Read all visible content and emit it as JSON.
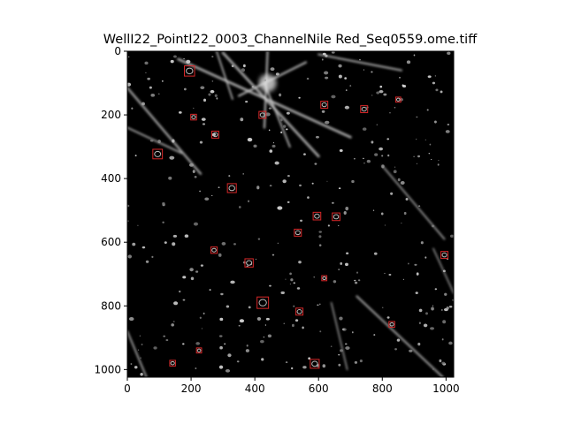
{
  "chart_data": {
    "type": "image-with-detections",
    "title": "WellI22_PointI22_0003_ChannelNile Red_Seq0559.ome.tiff",
    "xlabel": "",
    "ylabel": "",
    "xlim": [
      0,
      1024
    ],
    "ylim": [
      1024,
      0
    ],
    "x_ticks": [
      0,
      200,
      400,
      600,
      800,
      1000
    ],
    "y_ticks": [
      0,
      200,
      400,
      600,
      800,
      1000
    ],
    "grid": false,
    "legend": "none",
    "colors": {
      "image_background": "#000000",
      "box": "#d62728",
      "spot": "#bdbdbd"
    },
    "detections": [
      {
        "x": 195,
        "y": 62,
        "size": 32
      },
      {
        "x": 850,
        "y": 152,
        "size": 16
      },
      {
        "x": 618,
        "y": 168,
        "size": 22
      },
      {
        "x": 743,
        "y": 182,
        "size": 22
      },
      {
        "x": 424,
        "y": 200,
        "size": 22
      },
      {
        "x": 208,
        "y": 207,
        "size": 18
      },
      {
        "x": 276,
        "y": 262,
        "size": 22
      },
      {
        "x": 95,
        "y": 323,
        "size": 30
      },
      {
        "x": 328,
        "y": 430,
        "size": 28
      },
      {
        "x": 595,
        "y": 518,
        "size": 24
      },
      {
        "x": 655,
        "y": 520,
        "size": 24
      },
      {
        "x": 535,
        "y": 570,
        "size": 22
      },
      {
        "x": 272,
        "y": 625,
        "size": 20
      },
      {
        "x": 995,
        "y": 640,
        "size": 22
      },
      {
        "x": 382,
        "y": 665,
        "size": 26
      },
      {
        "x": 618,
        "y": 713,
        "size": 16
      },
      {
        "x": 425,
        "y": 790,
        "size": 36
      },
      {
        "x": 540,
        "y": 818,
        "size": 22
      },
      {
        "x": 830,
        "y": 858,
        "size": 18
      },
      {
        "x": 225,
        "y": 940,
        "size": 16
      },
      {
        "x": 142,
        "y": 980,
        "size": 18
      },
      {
        "x": 588,
        "y": 982,
        "size": 28
      }
    ]
  }
}
